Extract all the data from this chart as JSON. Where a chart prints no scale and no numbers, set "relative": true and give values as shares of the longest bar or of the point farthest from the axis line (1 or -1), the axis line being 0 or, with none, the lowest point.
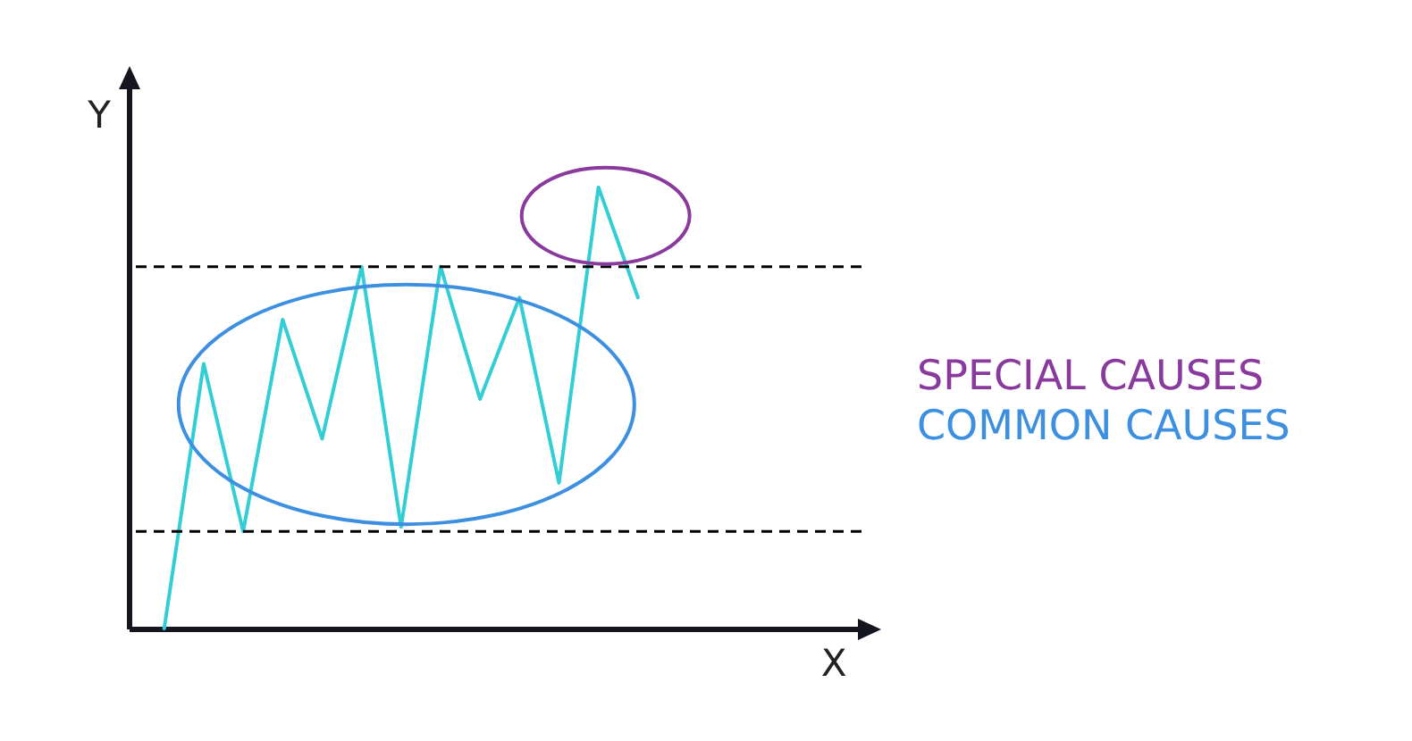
{
  "chart_data": {
    "type": "line",
    "xlabel": "X",
    "ylabel": "Y",
    "categories": [
      null,
      null,
      null,
      null,
      null,
      null,
      null,
      null,
      null,
      null,
      null,
      null,
      null
    ],
    "values": [
      0,
      0.6,
      0.22,
      0.7,
      0.43,
      0.82,
      0.23,
      0.82,
      0.52,
      0.75,
      0.33,
      1,
      0.75
    ],
    "color": "#33cdd6",
    "relative": true,
    "ref_lines": [
      {
        "axis": "y",
        "value": 0.82,
        "line_style": "dashed",
        "color": "#000000"
      },
      {
        "axis": "y",
        "value": 0.22,
        "line_style": "dashed",
        "color": "#000000"
      }
    ],
    "annotations": [
      "SPECIAL CAUSES",
      "COMMON CAUSES"
    ]
  }
}
